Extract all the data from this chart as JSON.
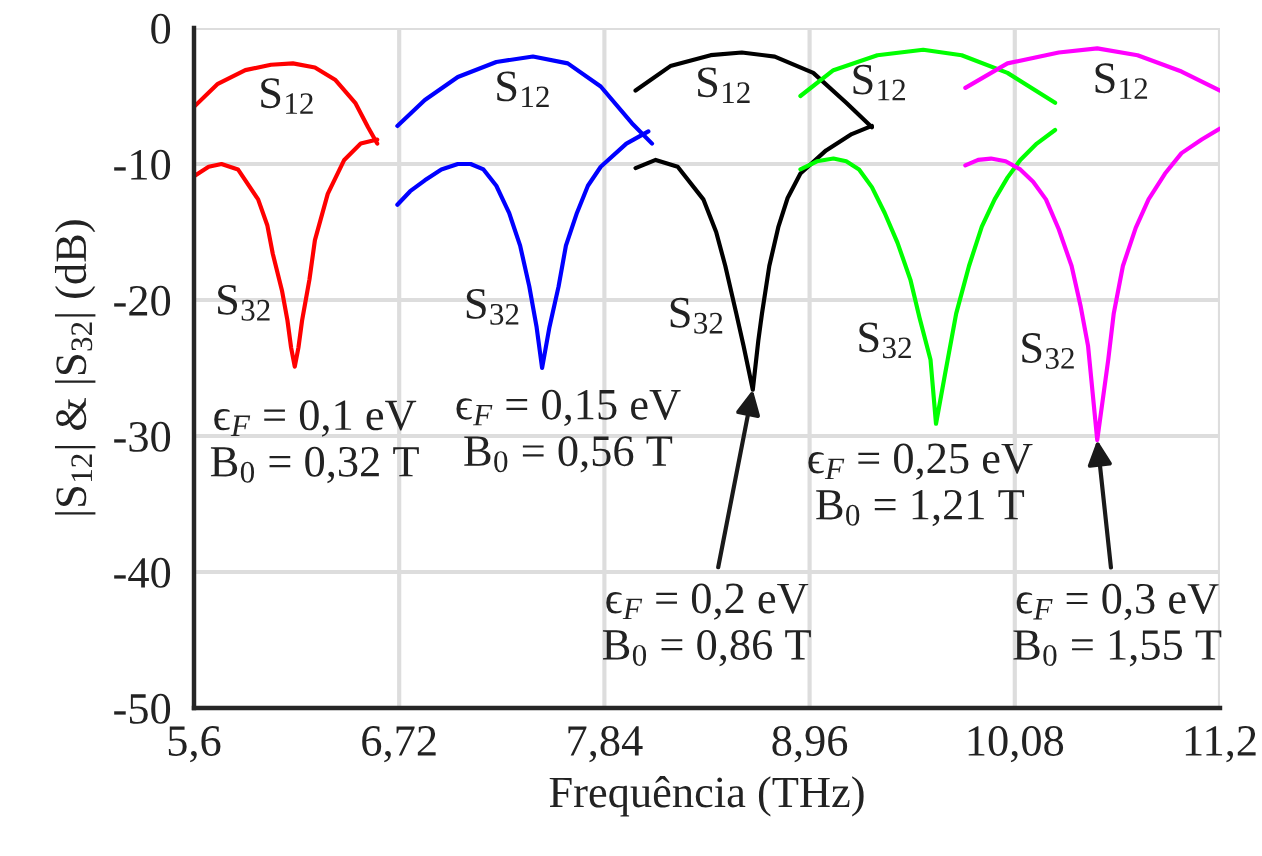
{
  "chart_data": {
    "type": "line",
    "xlabel": "Frequência (THz)",
    "ylabel": "|S$_{12}$| & |S$_{32}$| (dB)",
    "xlim": [
      5.6,
      11.2
    ],
    "xticks": [
      {
        "value": 5.6,
        "label": "5,6"
      },
      {
        "value": 6.72,
        "label": "6,72"
      },
      {
        "value": 7.84,
        "label": "7,84"
      },
      {
        "value": 8.96,
        "label": "8,96"
      },
      {
        "value": 10.08,
        "label": "10,08"
      },
      {
        "value": 11.2,
        "label": "11,2"
      }
    ],
    "ylim": [
      -50,
      0
    ],
    "yticks": [
      -50,
      -40,
      -30,
      -20,
      -10,
      0
    ],
    "grid": true,
    "line_style": "solid",
    "series": [
      {
        "name": "S$_{12}$",
        "color": "#ff0000",
        "x": [
          5.6,
          5.73,
          5.88,
          6.02,
          6.14,
          6.26,
          6.37,
          6.48,
          6.55,
          6.6
        ],
        "values": [
          -5.8,
          -4.1,
          -3.1,
          -2.7,
          -2.6,
          -2.9,
          -3.8,
          -5.5,
          -7.3,
          -8.5
        ]
      },
      {
        "name": "S$_{32}$",
        "color": "#ff0000",
        "x": [
          5.6,
          5.68,
          5.75,
          5.84,
          5.95,
          6.0,
          6.03,
          6.08,
          6.11,
          6.13,
          6.15,
          6.17,
          6.19,
          6.23,
          6.26,
          6.33,
          6.42,
          6.51,
          6.6
        ],
        "values": [
          -10.9,
          -10.2,
          -10.0,
          -10.4,
          -12.6,
          -14.5,
          -16.6,
          -19.3,
          -21.5,
          -23.5,
          -24.9,
          -23.5,
          -21.5,
          -18.5,
          -15.6,
          -12.2,
          -9.7,
          -8.5,
          -8.2
        ]
      },
      {
        "name": "S$_{12}$",
        "color": "#0000ff",
        "x": [
          6.71,
          6.86,
          7.04,
          7.25,
          7.45,
          7.64,
          7.82,
          7.99,
          8.1
        ],
        "values": [
          -7.2,
          -5.3,
          -3.6,
          -2.5,
          -2.1,
          -2.6,
          -4.3,
          -7.0,
          -8.5
        ]
      },
      {
        "name": "S$_{32}$",
        "color": "#0000ff",
        "x": [
          6.71,
          6.78,
          6.86,
          6.95,
          7.04,
          7.11,
          7.18,
          7.25,
          7.32,
          7.38,
          7.43,
          7.47,
          7.5,
          7.54,
          7.59,
          7.63,
          7.69,
          7.75,
          7.82,
          7.96,
          8.08
        ],
        "values": [
          -13.0,
          -12.0,
          -11.2,
          -10.4,
          -10.0,
          -10.0,
          -10.4,
          -11.6,
          -13.6,
          -16.0,
          -19.0,
          -22.0,
          -25.0,
          -22.0,
          -19.0,
          -16.0,
          -13.6,
          -11.6,
          -10.2,
          -8.5,
          -7.6
        ]
      },
      {
        "name": "S$_{12}$",
        "color": "#000000",
        "x": [
          8.01,
          8.2,
          8.42,
          8.59,
          8.77,
          8.98,
          9.16,
          9.3
        ],
        "values": [
          -4.6,
          -2.8,
          -2.0,
          -1.8,
          -2.1,
          -3.3,
          -5.5,
          -7.3
        ]
      },
      {
        "name": "S$_{32}$",
        "color": "#000000",
        "x": [
          8.01,
          8.12,
          8.24,
          8.38,
          8.45,
          8.5,
          8.56,
          8.6,
          8.65,
          8.68,
          8.7,
          8.74,
          8.79,
          8.84,
          8.91,
          9.05,
          9.19,
          9.3
        ],
        "values": [
          -10.3,
          -9.7,
          -10.2,
          -12.6,
          -15.0,
          -17.5,
          -21.0,
          -23.4,
          -26.6,
          -23.0,
          -21.0,
          -17.5,
          -14.6,
          -12.5,
          -10.7,
          -9.0,
          -7.8,
          -7.2
        ]
      },
      {
        "name": "S$_{12}$",
        "color": "#00ff00",
        "x": [
          8.91,
          9.09,
          9.33,
          9.58,
          9.79,
          10.04,
          10.3
        ],
        "values": [
          -5.0,
          -3.1,
          -2.0,
          -1.6,
          -2.0,
          -3.3,
          -5.5
        ]
      },
      {
        "name": "S$_{32}$",
        "color": "#00ff00",
        "x": [
          8.91,
          9.0,
          9.09,
          9.16,
          9.23,
          9.3,
          9.37,
          9.44,
          9.51,
          9.56,
          9.62,
          9.65,
          9.7,
          9.76,
          9.83,
          9.9,
          9.97,
          10.04,
          10.11,
          10.2,
          10.3
        ],
        "values": [
          -10.4,
          -9.8,
          -9.6,
          -9.8,
          -10.4,
          -11.7,
          -13.6,
          -15.8,
          -18.5,
          -21.3,
          -24.4,
          -29.1,
          -25.4,
          -21.0,
          -17.5,
          -14.6,
          -12.6,
          -11.0,
          -9.7,
          -8.5,
          -7.5
        ]
      },
      {
        "name": "S$_{12}$",
        "color": "#ff00ff",
        "x": [
          9.81,
          10.04,
          10.32,
          10.53,
          10.75,
          10.99,
          11.2
        ],
        "values": [
          -4.4,
          -2.6,
          -1.8,
          -1.5,
          -2.0,
          -3.2,
          -4.6
        ]
      },
      {
        "name": "S$_{32}$",
        "color": "#ff00ff",
        "x": [
          9.81,
          9.88,
          9.95,
          10.03,
          10.11,
          10.18,
          10.25,
          10.32,
          10.39,
          10.44,
          10.48,
          10.53,
          10.59,
          10.62,
          10.67,
          10.74,
          10.81,
          10.9,
          10.99,
          11.1,
          11.2
        ],
        "values": [
          -10.1,
          -9.7,
          -9.6,
          -9.8,
          -10.4,
          -11.3,
          -12.6,
          -14.8,
          -17.5,
          -20.5,
          -23.4,
          -30.3,
          -24.4,
          -21.0,
          -17.5,
          -14.7,
          -12.6,
          -10.7,
          -9.2,
          -8.2,
          -7.4
        ]
      }
    ],
    "annotations": [
      {
        "text": "ϵ$_{F}$ = 0,1 eV\nB$_{0}$ = 0,32 T",
        "x": 6.15,
        "y": -24.9
      },
      {
        "text": "ϵ$_{F}$ = 0,15 eV\nB$_{0}$ = 0,56 T",
        "x": 7.5,
        "y": -25.0
      },
      {
        "text": "ϵ$_{F}$ = 0,2 eV\nB$_{0}$ = 0,86 T",
        "x": 8.65,
        "y": -26.6
      },
      {
        "text": "ϵ$_{F}$ = 0,25 eV\nB$_{0}$ = 1,21 T",
        "x": 9.65,
        "y": -29.1
      },
      {
        "text": "ϵ$_{F}$ = 0,3 eV\nB$_{0}$ = 1,55 T",
        "x": 10.53,
        "y": -30.3
      }
    ]
  }
}
